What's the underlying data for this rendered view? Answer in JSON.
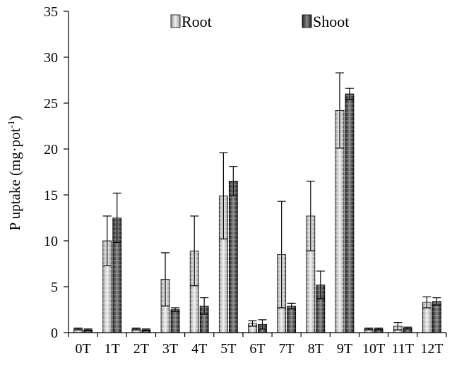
{
  "chart_data": {
    "type": "bar",
    "categories": [
      "0T",
      "1T",
      "2T",
      "3T",
      "4T",
      "5T",
      "6T",
      "7T",
      "8T",
      "9T",
      "10T",
      "11T",
      "12T"
    ],
    "series": [
      {
        "name": "Root",
        "values": [
          0.4,
          10.0,
          0.4,
          5.8,
          8.9,
          14.9,
          1.0,
          8.5,
          12.7,
          24.2,
          0.4,
          0.7,
          3.3
        ],
        "error": [
          0.1,
          2.7,
          0.1,
          2.9,
          3.8,
          4.7,
          0.3,
          5.8,
          3.8,
          4.1,
          0.1,
          0.4,
          0.6
        ]
      },
      {
        "name": "Shoot",
        "values": [
          0.3,
          12.5,
          0.3,
          2.5,
          2.9,
          16.5,
          0.9,
          2.9,
          5.2,
          26.0,
          0.4,
          0.5,
          3.4
        ],
        "error": [
          0.1,
          2.7,
          0.1,
          0.2,
          0.9,
          1.6,
          0.5,
          0.3,
          1.5,
          0.6,
          0.1,
          0.1,
          0.4
        ]
      }
    ],
    "ylabel_main": "P uptake (mg·pot",
    "ylabel_sup": "-1",
    "ylabel_end": ")",
    "ylim": [
      0,
      35
    ],
    "yticks": [
      0,
      5,
      10,
      15,
      20,
      25,
      30,
      35
    ],
    "legend_position": "top",
    "colors": {
      "root": "#c8c8c8",
      "shoot": "#3a3a3a",
      "axis": "#000000"
    }
  }
}
